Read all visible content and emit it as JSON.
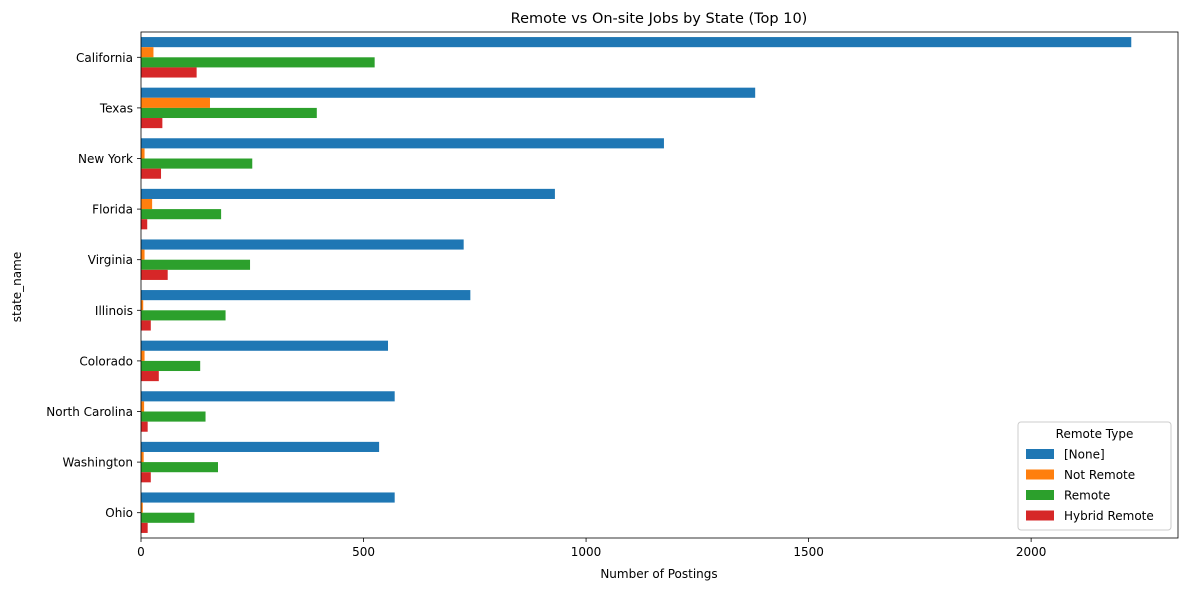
{
  "chart_data": {
    "type": "bar",
    "orientation": "horizontal",
    "title": "Remote vs On-site Jobs by State (Top 10)",
    "xlabel": "Number of Postings",
    "ylabel": "state_name",
    "xlim": [
      0,
      2330
    ],
    "xticks": [
      0,
      500,
      1000,
      1500,
      2000
    ],
    "grid": false,
    "legend_title": "Remote Type",
    "legend_placement": "lower-right",
    "categories": [
      "California",
      "Texas",
      "New York",
      "Florida",
      "Virginia",
      "Illinois",
      "Colorado",
      "North Carolina",
      "Washington",
      "Ohio"
    ],
    "series": [
      {
        "name": "[None]",
        "color": "#1f77b4",
        "values": [
          2225,
          1380,
          1175,
          930,
          725,
          740,
          555,
          570,
          535,
          570
        ]
      },
      {
        "name": "Not Remote",
        "color": "#ff7f0e",
        "values": [
          28,
          155,
          8,
          25,
          8,
          5,
          8,
          7,
          6,
          4
        ]
      },
      {
        "name": "Remote",
        "color": "#2ca02c",
        "values": [
          525,
          395,
          250,
          180,
          245,
          190,
          133,
          145,
          173,
          120
        ]
      },
      {
        "name": "Hybrid Remote",
        "color": "#d62728",
        "values": [
          125,
          48,
          45,
          14,
          60,
          22,
          40,
          15,
          22,
          15
        ]
      }
    ]
  }
}
